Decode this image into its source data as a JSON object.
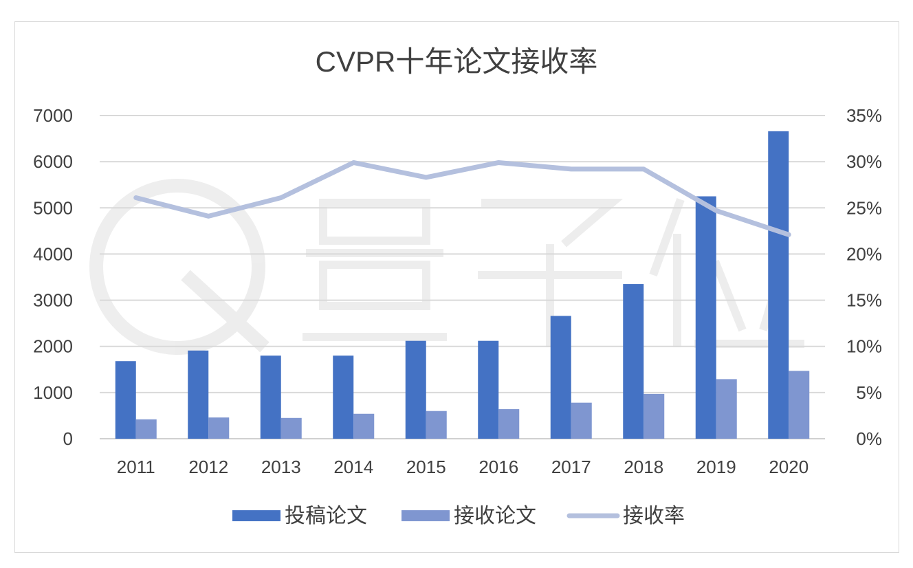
{
  "chart_data": {
    "type": "bar",
    "title": "CVPR十年论文接收率",
    "categories": [
      "2011",
      "2012",
      "2013",
      "2014",
      "2015",
      "2016",
      "2017",
      "2018",
      "2019",
      "2020"
    ],
    "series": [
      {
        "name": "投稿论文",
        "type": "bar",
        "axis": "left",
        "color": "#4472c4",
        "values": [
          1680,
          1910,
          1800,
          1800,
          2120,
          2120,
          2660,
          3350,
          5250,
          6660
        ]
      },
      {
        "name": "接收论文",
        "type": "bar",
        "axis": "left",
        "color": "#7f96d0",
        "values": [
          420,
          460,
          450,
          540,
          600,
          640,
          780,
          970,
          1290,
          1470
        ]
      },
      {
        "name": "接收率",
        "type": "line",
        "axis": "right",
        "color": "#b4c0de",
        "values": [
          26.1,
          24.1,
          26.1,
          29.9,
          28.3,
          29.9,
          29.2,
          29.2,
          24.7,
          22.1
        ]
      }
    ],
    "y_left": {
      "min": 0,
      "max": 7000,
      "ticks": [
        "0",
        "1000",
        "2000",
        "3000",
        "4000",
        "5000",
        "6000",
        "7000"
      ]
    },
    "y_right": {
      "min": 0,
      "max": 35,
      "ticks": [
        "0%",
        "5%",
        "10%",
        "15%",
        "20%",
        "25%",
        "30%",
        "35%"
      ]
    },
    "grid": true,
    "legend_position": "bottom"
  }
}
